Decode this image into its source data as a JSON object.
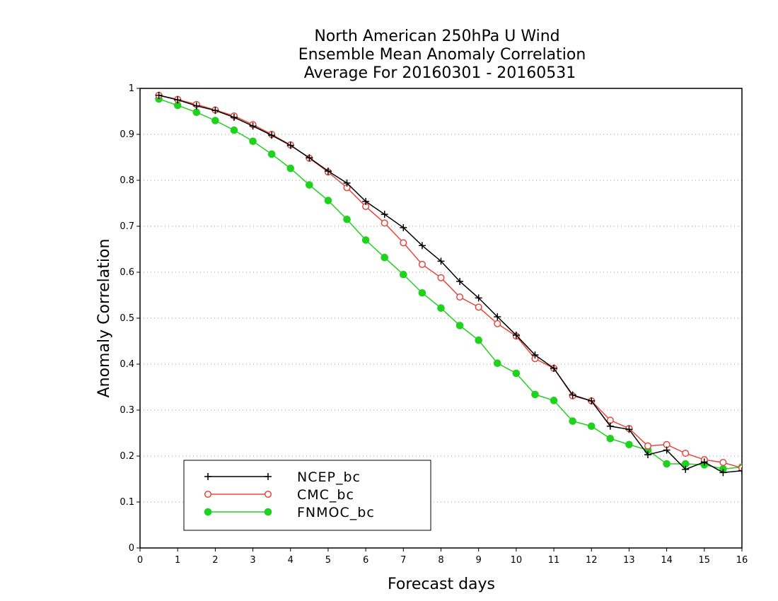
{
  "chart_data": {
    "type": "line",
    "title_lines": [
      "North American 250hPa U Wind",
      "Ensemble Mean Anomaly Correlation",
      "Average For 20160301 - 20160531"
    ],
    "xlabel": "Forecast days",
    "ylabel": "Anomaly Correlation",
    "xlim": [
      0,
      16
    ],
    "ylim": [
      0,
      1
    ],
    "x_ticks": [
      "0",
      "1",
      "2",
      "3",
      "4",
      "5",
      "6",
      "7",
      "8",
      "9",
      "10",
      "11",
      "12",
      "13",
      "14",
      "15",
      "16"
    ],
    "y_ticks": [
      "0",
      "0.1",
      "0.2",
      "0.3",
      "0.4",
      "0.5",
      "0.6",
      "0.7",
      "0.8",
      "0.9",
      "1"
    ],
    "grid": true,
    "legend_position": "bottom-left",
    "x": [
      0.5,
      1,
      1.5,
      2,
      2.5,
      3,
      3.5,
      4,
      4.5,
      5,
      5.5,
      6,
      6.5,
      7,
      7.5,
      8,
      8.5,
      9,
      9.5,
      10,
      10.5,
      11,
      11.5,
      12,
      12.5,
      13,
      13.5,
      14,
      14.5,
      15,
      15.5,
      16
    ],
    "series": [
      {
        "name": "NCEP_bc",
        "color": "#000000",
        "marker": "plus",
        "values": [
          0.985,
          0.975,
          0.962,
          0.952,
          0.937,
          0.918,
          0.898,
          0.876,
          0.849,
          0.82,
          0.794,
          0.754,
          0.726,
          0.697,
          0.658,
          0.624,
          0.58,
          0.544,
          0.503,
          0.463,
          0.42,
          0.391,
          0.333,
          0.32,
          0.265,
          0.258,
          0.203,
          0.213,
          0.171,
          0.187,
          0.164,
          0.168
        ]
      },
      {
        "name": "CMC_bc",
        "color": "#e8463c",
        "marker": "open-circle",
        "values": [
          0.985,
          0.976,
          0.965,
          0.953,
          0.94,
          0.921,
          0.9,
          0.877,
          0.848,
          0.818,
          0.784,
          0.743,
          0.707,
          0.664,
          0.617,
          0.588,
          0.546,
          0.524,
          0.488,
          0.461,
          0.412,
          0.391,
          0.331,
          0.32,
          0.278,
          0.26,
          0.222,
          0.225,
          0.206,
          0.192,
          0.186,
          0.174
        ]
      },
      {
        "name": "FNMOC_bc",
        "color": "#1ed21e",
        "marker": "filled-circle",
        "values": [
          0.977,
          0.963,
          0.948,
          0.93,
          0.909,
          0.885,
          0.857,
          0.826,
          0.79,
          0.756,
          0.715,
          0.67,
          0.632,
          0.595,
          0.555,
          0.522,
          0.484,
          0.452,
          0.402,
          0.38,
          0.334,
          0.321,
          0.276,
          0.265,
          0.238,
          0.225,
          0.213,
          0.183,
          0.183,
          0.181,
          0.172,
          0.176
        ]
      }
    ]
  }
}
